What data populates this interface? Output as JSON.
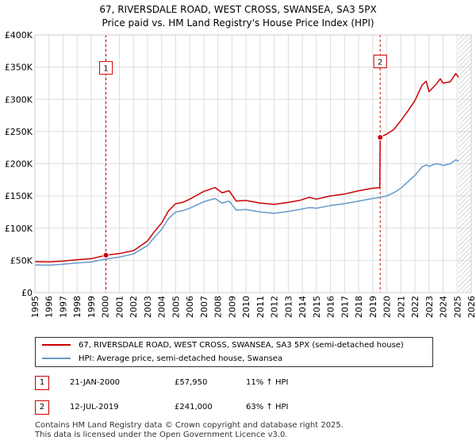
{
  "title_line1": "67, RIVERSDALE ROAD, WEST CROSS, SWANSEA, SA3 5PX",
  "title_line2": "Price paid vs. HM Land Registry's House Price Index (HPI)",
  "colors": {
    "property": "#cc0000",
    "hpi": "#6699cc",
    "marker_border": "#cc0000",
    "grid": "#dddddd"
  },
  "chart_data": {
    "type": "line",
    "title": "67, RIVERSDALE ROAD, WEST CROSS, SWANSEA, SA3 5PX — Price paid vs. HM Land Registry's House Price Index (HPI)",
    "xlabel": "",
    "ylabel": "",
    "xlim": [
      1995,
      2026
    ],
    "ylim": [
      0,
      400000
    ],
    "x_ticks": [
      "1995",
      "1996",
      "1997",
      "1998",
      "1999",
      "2000",
      "2001",
      "2002",
      "2003",
      "2004",
      "2005",
      "2006",
      "2007",
      "2008",
      "2009",
      "2010",
      "2011",
      "2012",
      "2013",
      "2014",
      "2015",
      "2016",
      "2017",
      "2018",
      "2019",
      "2020",
      "2021",
      "2022",
      "2023",
      "2024",
      "2025",
      "2026"
    ],
    "y_ticks": [
      {
        "value": 0,
        "label": "£0"
      },
      {
        "value": 50000,
        "label": "£50K"
      },
      {
        "value": 100000,
        "label": "£100K"
      },
      {
        "value": 150000,
        "label": "£150K"
      },
      {
        "value": 200000,
        "label": "£200K"
      },
      {
        "value": 250000,
        "label": "£250K"
      },
      {
        "value": 300000,
        "label": "£300K"
      },
      {
        "value": 350000,
        "label": "£350K"
      },
      {
        "value": 400000,
        "label": "£400K"
      }
    ],
    "grid": true,
    "shaded_region": {
      "from": 2025.1,
      "to": 2026,
      "style": "hatched"
    },
    "series": [
      {
        "name": "67, RIVERSDALE ROAD, WEST CROSS, SWANSEA, SA3 5PX (semi-detached house)",
        "color": "#cc0000",
        "points": [
          [
            1995.0,
            48000
          ],
          [
            1996.0,
            47500
          ],
          [
            1997.0,
            49000
          ],
          [
            1998.0,
            51000
          ],
          [
            1999.0,
            52500
          ],
          [
            2000.05,
            57950
          ],
          [
            2001.0,
            60500
          ],
          [
            2002.0,
            65000
          ],
          [
            2003.0,
            80000
          ],
          [
            2003.5,
            95000
          ],
          [
            2004.0,
            108000
          ],
          [
            2004.5,
            127000
          ],
          [
            2005.0,
            138000
          ],
          [
            2005.5,
            140000
          ],
          [
            2006.0,
            145000
          ],
          [
            2007.0,
            157000
          ],
          [
            2007.8,
            163000
          ],
          [
            2008.3,
            155000
          ],
          [
            2008.8,
            158000
          ],
          [
            2009.3,
            142000
          ],
          [
            2010.0,
            143000
          ],
          [
            2011.0,
            139000
          ],
          [
            2012.0,
            137000
          ],
          [
            2013.0,
            140000
          ],
          [
            2013.8,
            143000
          ],
          [
            2014.5,
            148000
          ],
          [
            2015.0,
            145000
          ],
          [
            2016.0,
            150000
          ],
          [
            2017.0,
            153000
          ],
          [
            2018.0,
            158000
          ],
          [
            2019.0,
            162000
          ],
          [
            2019.5,
            163000
          ],
          [
            2019.53,
            241000
          ],
          [
            2020.0,
            246000
          ],
          [
            2020.5,
            253000
          ],
          [
            2021.0,
            267000
          ],
          [
            2021.5,
            282000
          ],
          [
            2022.0,
            298000
          ],
          [
            2022.5,
            322000
          ],
          [
            2022.8,
            328000
          ],
          [
            2023.0,
            312000
          ],
          [
            2023.5,
            323000
          ],
          [
            2023.8,
            332000
          ],
          [
            2024.0,
            325000
          ],
          [
            2024.5,
            327000
          ],
          [
            2024.9,
            340000
          ],
          [
            2025.1,
            334000
          ]
        ]
      },
      {
        "name": "HPI: Average price, semi-detached house, Swansea",
        "color": "#6699cc",
        "points": [
          [
            1995.0,
            43000
          ],
          [
            1996.0,
            42500
          ],
          [
            1997.0,
            44000
          ],
          [
            1998.0,
            46000
          ],
          [
            1999.0,
            47500
          ],
          [
            2000.05,
            52000
          ],
          [
            2001.0,
            55000
          ],
          [
            2002.0,
            60000
          ],
          [
            2003.0,
            73000
          ],
          [
            2003.5,
            86000
          ],
          [
            2004.0,
            98000
          ],
          [
            2004.5,
            115000
          ],
          [
            2005.0,
            125000
          ],
          [
            2005.5,
            127000
          ],
          [
            2006.0,
            131000
          ],
          [
            2007.0,
            141000
          ],
          [
            2007.8,
            146000
          ],
          [
            2008.3,
            139000
          ],
          [
            2008.8,
            142000
          ],
          [
            2009.3,
            128000
          ],
          [
            2010.0,
            129000
          ],
          [
            2011.0,
            125000
          ],
          [
            2012.0,
            123000
          ],
          [
            2013.0,
            126000
          ],
          [
            2013.8,
            129000
          ],
          [
            2014.5,
            132000
          ],
          [
            2015.0,
            131000
          ],
          [
            2016.0,
            135000
          ],
          [
            2017.0,
            138000
          ],
          [
            2018.0,
            142000
          ],
          [
            2019.0,
            146000
          ],
          [
            2019.53,
            148000
          ],
          [
            2020.0,
            150000
          ],
          [
            2020.5,
            155000
          ],
          [
            2021.0,
            162000
          ],
          [
            2021.5,
            172000
          ],
          [
            2022.0,
            182000
          ],
          [
            2022.5,
            195000
          ],
          [
            2022.8,
            198000
          ],
          [
            2023.0,
            196000
          ],
          [
            2023.5,
            200000
          ],
          [
            2023.8,
            199000
          ],
          [
            2024.0,
            197000
          ],
          [
            2024.5,
            200000
          ],
          [
            2024.9,
            206000
          ],
          [
            2025.1,
            204000
          ]
        ]
      }
    ],
    "markers": [
      {
        "label": "1",
        "x": 2000.05,
        "y": 57950,
        "box_value": 350000
      },
      {
        "label": "2",
        "x": 2019.53,
        "y": 241000,
        "box_value": 360000
      }
    ]
  },
  "legend": {
    "property_label": "67, RIVERSDALE ROAD, WEST CROSS, SWANSEA, SA3 5PX (semi-detached house)",
    "hpi_label": "HPI: Average price, semi-detached house, Swansea"
  },
  "sales": [
    {
      "id": "1",
      "date": "21-JAN-2000",
      "price": "£57,950",
      "hpi_change": "11% ↑ HPI"
    },
    {
      "id": "2",
      "date": "12-JUL-2019",
      "price": "£241,000",
      "hpi_change": "63% ↑ HPI"
    }
  ],
  "footer_line1": "Contains HM Land Registry data © Crown copyright and database right 2025.",
  "footer_line2": "This data is licensed under the Open Government Licence v3.0."
}
